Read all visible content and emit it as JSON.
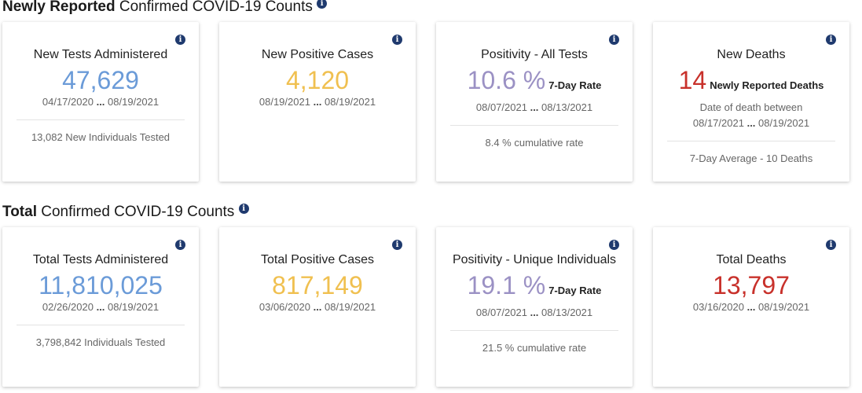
{
  "colors": {
    "blue": "#6b9bd8",
    "yellow": "#f0c050",
    "purple": "#9b91c4",
    "red": "#c8312b",
    "info": "#1f3a6e"
  },
  "new": {
    "title_bold": "Newly Reported",
    "title_rest": " Confirmed COVID-19 Counts",
    "cards": [
      {
        "title": "New Tests Administered",
        "value": "47,629",
        "start": "04/17/2020",
        "end": "08/19/2021",
        "footer": "13,082 New Individuals Tested"
      },
      {
        "title": "New Positive Cases",
        "value": "4,120",
        "start": "08/19/2021",
        "end": "08/19/2021"
      },
      {
        "title": "Positivity - All Tests",
        "value": "10.6 %",
        "suffix": "7-Day Rate",
        "start": "08/07/2021",
        "end": "08/13/2021",
        "footer": "8.4 % cumulative rate"
      },
      {
        "title": "New Deaths",
        "value": "14",
        "suffix": "Newly Reported Deaths",
        "subtitle": "Date of death between",
        "start": "08/17/2021",
        "end": "08/19/2021",
        "footer": "7-Day Average - 10 Deaths"
      }
    ]
  },
  "total": {
    "title_bold": "Total",
    "title_rest": " Confirmed COVID-19 Counts",
    "cards": [
      {
        "title": "Total Tests Administered",
        "value": "11,810,025",
        "start": "02/26/2020",
        "end": "08/19/2021",
        "footer": "3,798,842 Individuals Tested"
      },
      {
        "title": "Total Positive Cases",
        "value": "817,149",
        "start": "03/06/2020",
        "end": "08/19/2021"
      },
      {
        "title": "Positivity - Unique Individuals",
        "value": "19.1 %",
        "suffix": "7-Day Rate",
        "start": "08/07/2021",
        "end": "08/13/2021",
        "footer": "21.5 % cumulative rate"
      },
      {
        "title": "Total Deaths",
        "value": "13,797",
        "start": "03/16/2020",
        "end": "08/19/2021"
      }
    ]
  },
  "ellipsis": "...",
  "info_glyph": "i"
}
